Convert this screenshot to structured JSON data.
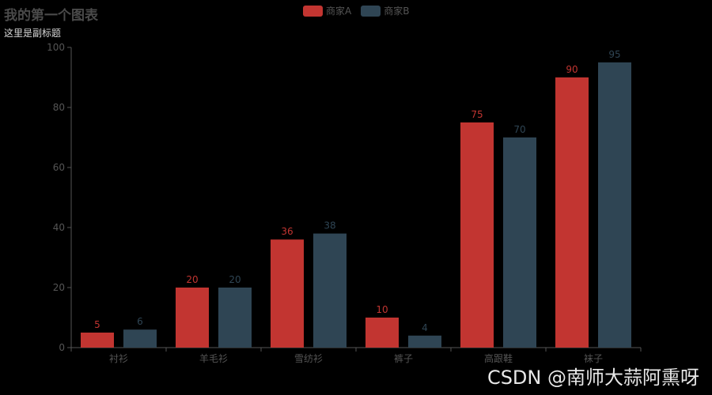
{
  "chart_data": {
    "type": "bar",
    "title": "我的第一个图表",
    "subtitle": "这里是副标题",
    "categories": [
      "衬衫",
      "羊毛衫",
      "雪纺衫",
      "裤子",
      "高跟鞋",
      "袜子"
    ],
    "series": [
      {
        "name": "商家A",
        "color": "#c23531",
        "values": [
          5,
          20,
          36,
          10,
          75,
          90
        ]
      },
      {
        "name": "商家B",
        "color": "#2f4554",
        "values": [
          6,
          20,
          38,
          4,
          70,
          95
        ]
      }
    ],
    "ylim": [
      0,
      100
    ],
    "yticks": [
      0,
      20,
      40,
      60,
      80,
      100
    ],
    "legend_position": "top-center",
    "grid": false,
    "data_labels": true
  },
  "watermark": "CSDN @南师大蒜阿熏呀",
  "colors": {
    "background": "#000000",
    "axis": "#555555",
    "title": "#4a4a4a",
    "subtitle": "#d8d8d8"
  }
}
